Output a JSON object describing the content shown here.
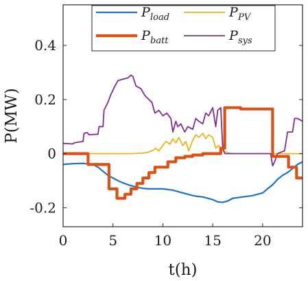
{
  "chart_data": {
    "type": "line",
    "title": "",
    "xlabel": "t(h)",
    "ylabel": "P(MW)",
    "xlim": [
      0,
      24
    ],
    "ylim": [
      -0.27,
      0.55
    ],
    "xticks": [
      0,
      5,
      10,
      15,
      20
    ],
    "xtick_labels": [
      "0",
      "5",
      "10",
      "15",
      "20"
    ],
    "yticks": [
      -0.2,
      0,
      0.2,
      0.4
    ],
    "ytick_labels": [
      "-0.2",
      "0",
      "0.2",
      "0.4"
    ],
    "grid": false,
    "legend_position": "top",
    "series": [
      {
        "name": "P_load",
        "label_main": "P",
        "label_sub": "load",
        "color": "#1f72bd",
        "width": 2.2,
        "x": [
          0,
          1,
          2,
          3,
          3.5,
          4,
          4.5,
          5,
          5.5,
          6,
          6.5,
          7,
          7.5,
          8,
          8.5,
          9,
          10,
          11,
          11.5,
          12,
          12.5,
          13,
          13.5,
          14,
          14.5,
          15,
          15.5,
          16,
          16.5,
          17,
          18,
          19,
          20,
          20.5,
          21,
          21.5,
          22,
          22.5,
          23,
          23.5,
          24
        ],
        "y": [
          -0.04,
          -0.037,
          -0.036,
          -0.04,
          -0.05,
          -0.065,
          -0.08,
          -0.09,
          -0.1,
          -0.108,
          -0.115,
          -0.12,
          -0.125,
          -0.128,
          -0.13,
          -0.13,
          -0.13,
          -0.135,
          -0.14,
          -0.145,
          -0.15,
          -0.155,
          -0.158,
          -0.16,
          -0.165,
          -0.17,
          -0.178,
          -0.18,
          -0.175,
          -0.165,
          -0.16,
          -0.155,
          -0.145,
          -0.13,
          -0.115,
          -0.095,
          -0.08,
          -0.07,
          -0.055,
          -0.04,
          -0.03
        ]
      },
      {
        "name": "P_batt",
        "label_main": "P",
        "label_sub": "batt",
        "color": "#d95319",
        "width": 4.2,
        "x": [
          0,
          2.5,
          2.5,
          4.6,
          4.6,
          5.4,
          5.4,
          6.2,
          6.2,
          6.8,
          6.8,
          7.4,
          7.4,
          8.0,
          8.0,
          8.6,
          8.6,
          9.2,
          9.2,
          10.5,
          10.5,
          11.3,
          11.3,
          12.2,
          12.2,
          13.0,
          13.0,
          14.0,
          14.0,
          15.8,
          15.8,
          16.2,
          16.2,
          17.8,
          17.8,
          21.0,
          21.0,
          22.6,
          22.6,
          23.4,
          23.4,
          24
        ],
        "y": [
          0,
          0,
          -0.04,
          -0.04,
          -0.13,
          -0.13,
          -0.165,
          -0.165,
          -0.15,
          -0.15,
          -0.13,
          -0.13,
          -0.11,
          -0.11,
          -0.09,
          -0.09,
          -0.07,
          -0.07,
          -0.05,
          -0.05,
          -0.03,
          -0.03,
          -0.015,
          -0.015,
          -0.01,
          -0.01,
          -0.005,
          -0.005,
          0.0,
          0.0,
          0.02,
          0.02,
          0.17,
          0.17,
          0.165,
          0.165,
          -0.01,
          -0.01,
          -0.05,
          -0.05,
          -0.09,
          -0.09
        ]
      },
      {
        "name": "P_PV",
        "label_main": "P",
        "label_sub": "PV",
        "color": "#edb120",
        "width": 1.8,
        "x": [
          0,
          7,
          8,
          8.5,
          9,
          9.3,
          9.6,
          10,
          10.3,
          10.7,
          11,
          11.3,
          11.6,
          12,
          12.3,
          12.6,
          13,
          13.3,
          13.6,
          14,
          14.3,
          14.6,
          15,
          15.3,
          15.6,
          16,
          16.5,
          17,
          24
        ],
        "y": [
          0,
          0,
          0.002,
          0.005,
          0.012,
          0.02,
          0.01,
          0.03,
          0.045,
          0.035,
          0.055,
          0.04,
          0.06,
          0.03,
          0.045,
          0.01,
          0.05,
          0.07,
          0.06,
          0.075,
          0.055,
          0.07,
          0.06,
          0.02,
          0.03,
          0.012,
          0.003,
          0.0,
          0
        ]
      },
      {
        "name": "P_sys",
        "label_main": "P",
        "label_sub": "sys",
        "color": "#7e2f8e",
        "width": 1.8,
        "x": [
          0,
          1.0,
          1.1,
          2.0,
          2.1,
          2.4,
          2.6,
          3.5,
          3.6,
          4.0,
          4.1,
          4.5,
          4.8,
          5.2,
          5.5,
          6.0,
          6.5,
          6.8,
          7.0,
          7.3,
          7.8,
          8.2,
          8.6,
          8.9,
          9.2,
          9.6,
          10.0,
          10.4,
          10.8,
          11.0,
          11.3,
          11.5,
          11.8,
          12.2,
          12.5,
          13.0,
          13.3,
          13.6,
          14.0,
          14.3,
          14.6,
          15.0,
          15.3,
          15.5,
          15.8,
          16.0,
          16.2,
          16.4,
          17.0,
          18.0,
          19.0,
          20.0,
          20.8,
          21.0,
          21.2,
          21.5,
          21.8,
          22.2,
          22.5,
          23.0,
          23.2,
          23.5,
          24
        ],
        "y": [
          0.038,
          0.036,
          0.04,
          0.045,
          0.075,
          0.078,
          0.07,
          0.072,
          0.1,
          0.1,
          0.16,
          0.19,
          0.22,
          0.25,
          0.27,
          0.275,
          0.28,
          0.29,
          0.285,
          0.25,
          0.24,
          0.215,
          0.2,
          0.19,
          0.15,
          0.16,
          0.14,
          0.15,
          0.13,
          0.08,
          0.12,
          0.1,
          0.11,
          0.08,
          0.1,
          0.09,
          0.13,
          0.12,
          0.11,
          0.15,
          0.14,
          0.17,
          0.1,
          0.16,
          0.17,
          0.02,
          0.0,
          0.0,
          0.0,
          0.0,
          0.0,
          0.0,
          0.0,
          -0.045,
          -0.03,
          0.0,
          0.005,
          0.01,
          0.08,
          0.08,
          0.13,
          0.13,
          0.12
        ]
      }
    ]
  }
}
